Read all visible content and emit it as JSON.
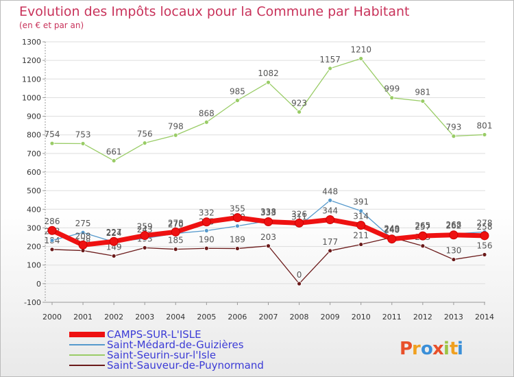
{
  "chart_data": {
    "type": "line",
    "title": "Evolution des Impôts locaux pour la Commune par Habitant",
    "subtitle": "(en € et par an)",
    "xlabel": "",
    "ylabel": "",
    "ylim": [
      -100,
      1300
    ],
    "yticks": [
      "-100",
      "0",
      "100",
      "200",
      "300",
      "400",
      "500",
      "600",
      "700",
      "800",
      "900",
      "1000",
      "1100",
      "1200",
      "1300"
    ],
    "categories": [
      "2000",
      "2001",
      "2002",
      "2003",
      "2004",
      "2005",
      "2006",
      "2007",
      "2008",
      "2009",
      "2010",
      "2011",
      "2012",
      "2013",
      "2014"
    ],
    "legend_position": "bottom-left",
    "series": [
      {
        "name": "Saint-Sauveur-de-Puynormand",
        "color": "#6b1a1a",
        "values": [
          184,
          178,
          149,
          193,
          185,
          190,
          189,
          203,
          0,
          177,
          211,
          249,
          203,
          130,
          156
        ]
      },
      {
        "name": "Saint-Seurin-sur-l'Isle",
        "color": "#99cc66",
        "values": [
          754,
          753,
          661,
          756,
          798,
          868,
          985,
          1082,
          923,
          1157,
          1210,
          999,
          981,
          793,
          801
        ]
      },
      {
        "name": "Saint-Médard-de-Guizières",
        "color": "#5599cc",
        "values": [
          233,
          275,
          224,
          243,
          270,
          285,
          310,
          338,
          311,
          448,
          391,
          243,
          265,
          268,
          278
        ]
      },
      {
        "name": "CAMPS-SUR-L'ISLE",
        "color": "#ee1111",
        "values": [
          286,
          208,
          227,
          259,
          278,
          332,
          355,
          333,
          326,
          344,
          314,
          240,
          257,
          262,
          258
        ]
      }
    ],
    "legend_order": [
      "CAMPS-SUR-L'ISLE",
      "Saint-Médard-de-Guizières",
      "Saint-Seurin-sur-l'Isle",
      "Saint-Sauveur-de-Puynormand"
    ]
  },
  "logo": {
    "text": "Proxiti",
    "letters": [
      "P",
      "r",
      "o",
      "x",
      "i",
      "t",
      "i"
    ],
    "colors": [
      "#e8502a",
      "#f0a020",
      "#3a8fd8",
      "#e8502a",
      "#9cc444",
      "#f0a020",
      "#3a8fd8"
    ]
  }
}
